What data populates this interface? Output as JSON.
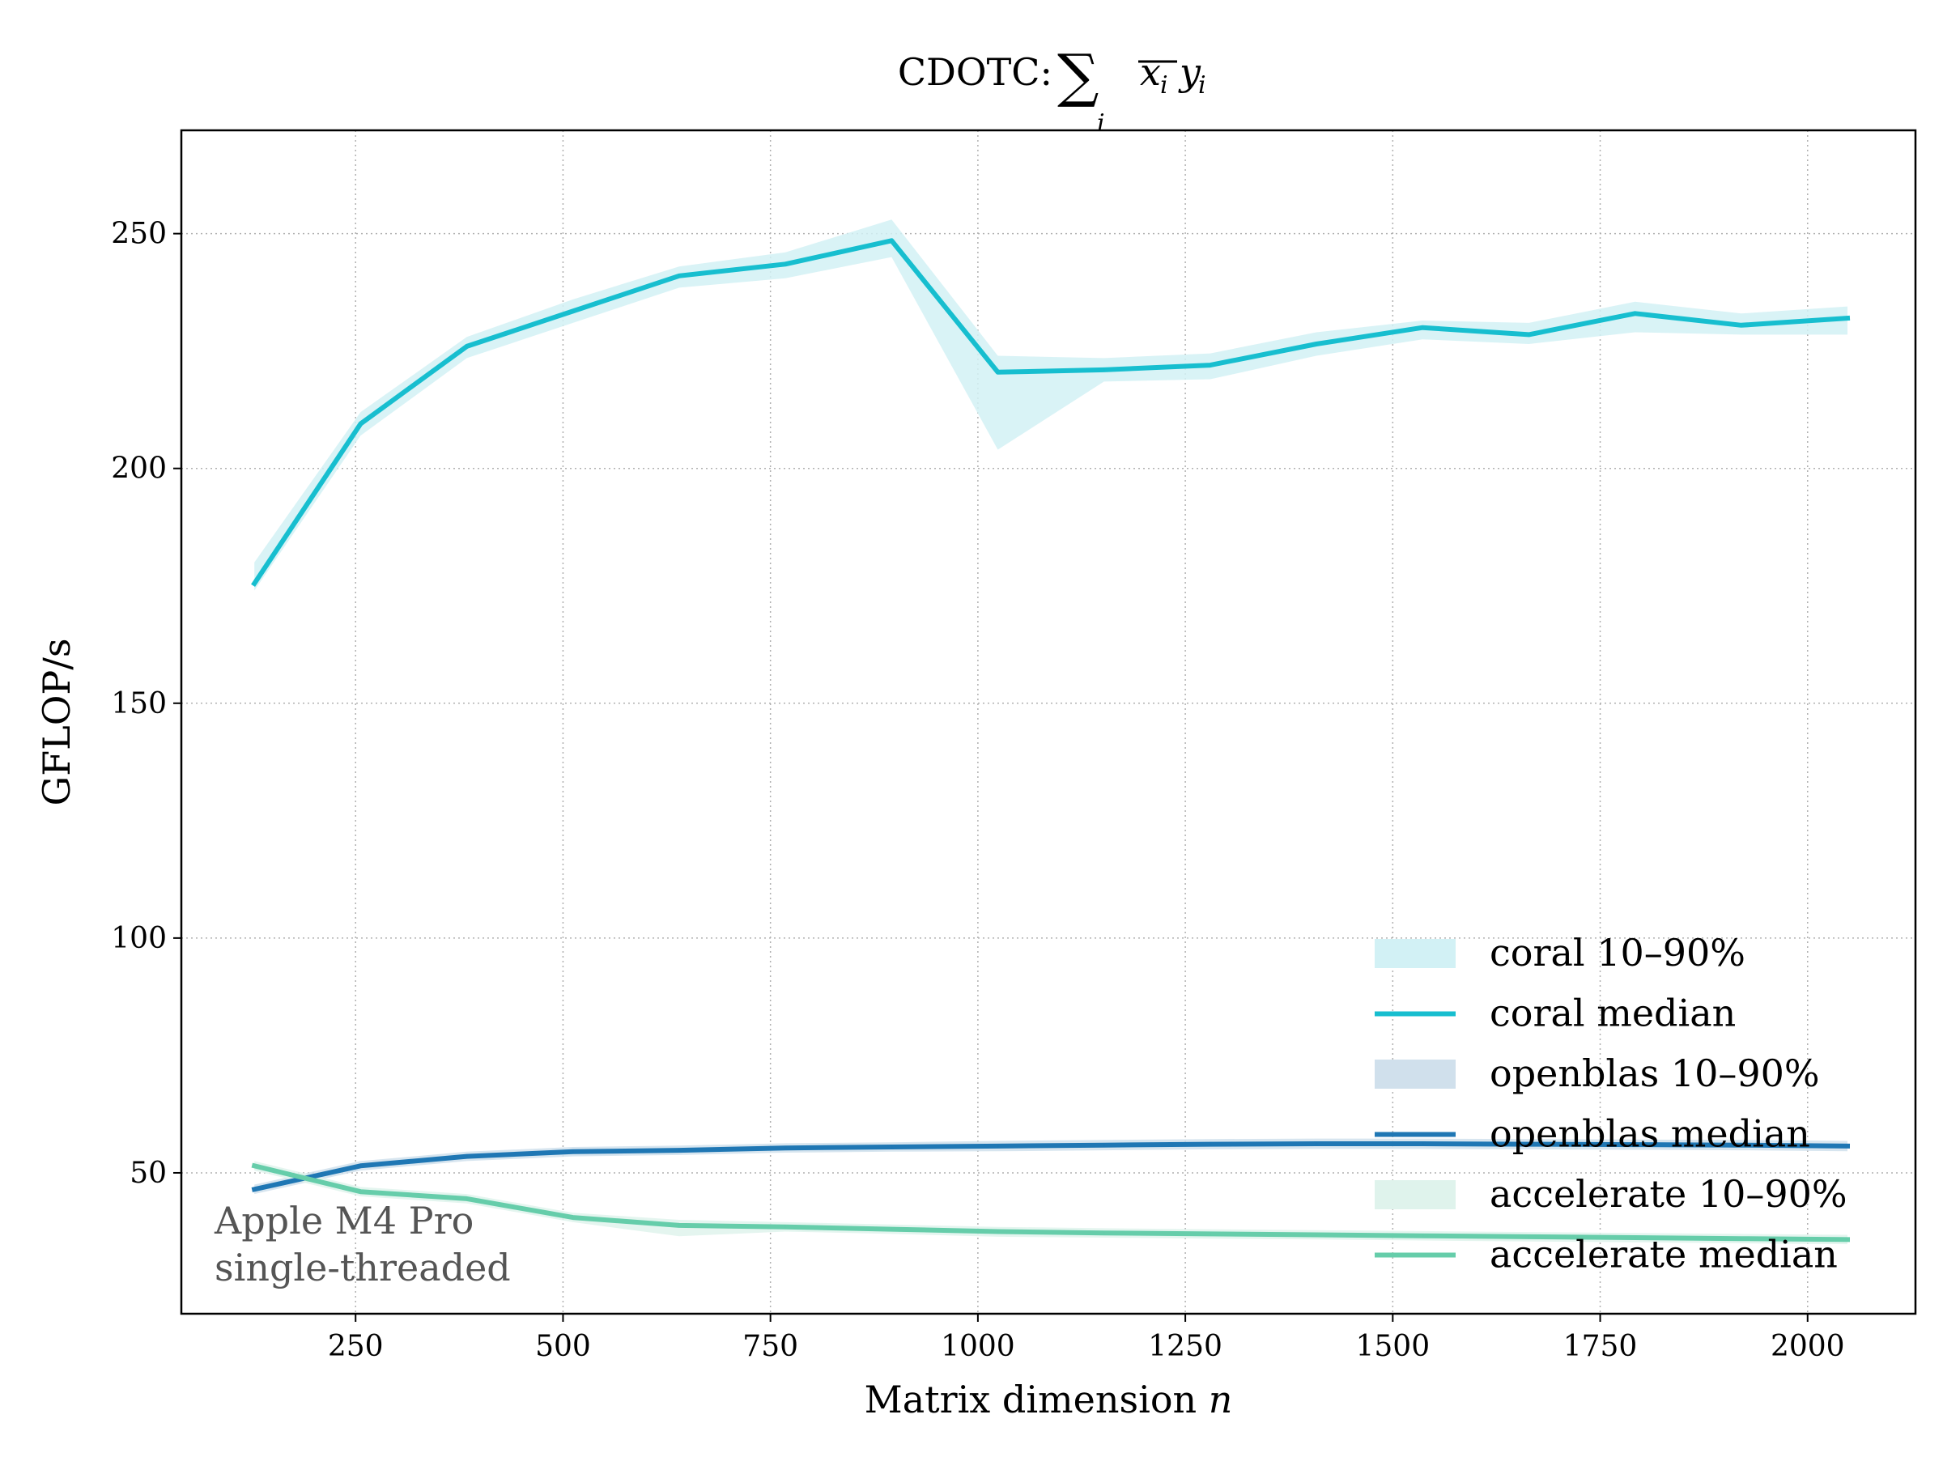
{
  "chart_data": {
    "type": "line",
    "title": "CDOTC: ",
    "title_math": {
      "sum": "∑",
      "sum_index": "i",
      "bar_var": "x",
      "bar_sub": "i",
      "var": "y",
      "var_sub": "i"
    },
    "xlabel": "Matrix dimension ",
    "xlabel_var": "n",
    "ylabel": "GFLOP/s",
    "xlim": [
      40,
      2130
    ],
    "ylim": [
      20,
      272
    ],
    "xticks": [
      250,
      500,
      750,
      1000,
      1250,
      1500,
      1750,
      2000
    ],
    "yticks": [
      50,
      100,
      150,
      200,
      250
    ],
    "grid": true,
    "legend_position": "lower-right",
    "annotation": [
      "Apple M4 Pro",
      "single-threaded"
    ],
    "colors": {
      "coral": "#17becf",
      "coral_band": "#d2f1f5",
      "openblas": "#1f77b4",
      "openblas_band": "#d0e0ec",
      "accelerate": "#66cdaa",
      "accelerate_band": "#dff3ec",
      "annotation": "#555555"
    },
    "x": [
      128,
      256,
      384,
      512,
      640,
      768,
      896,
      1024,
      1152,
      1280,
      1408,
      1536,
      1664,
      1792,
      1920,
      2048
    ],
    "series": [
      {
        "name": "coral median",
        "band_name": "coral 10–90%",
        "key": "coral",
        "median": [
          175.5,
          209.5,
          226,
          233.5,
          241,
          243.5,
          248.5,
          220.5,
          221,
          222,
          226.5,
          230,
          228.5,
          233,
          230.5,
          232
        ],
        "p10": [
          174,
          207,
          223.5,
          231,
          238.5,
          240.5,
          245,
          204,
          218.5,
          219,
          224,
          227.5,
          226.5,
          229,
          228.5,
          228.5
        ],
        "p90": [
          180,
          212,
          228,
          236,
          243,
          246,
          253,
          224,
          223.5,
          224.5,
          229,
          231.5,
          231,
          235.5,
          233,
          234.5
        ]
      },
      {
        "name": "openblas median",
        "band_name": "openblas 10–90%",
        "key": "openblas",
        "median": [
          46.5,
          51.5,
          53.5,
          54.5,
          54.8,
          55.3,
          55.5,
          55.7,
          55.9,
          56.1,
          56.2,
          56.2,
          56.1,
          56,
          55.9,
          55.7
        ],
        "p10": [
          45.5,
          50.5,
          52.5,
          53.5,
          53.8,
          54.3,
          54.5,
          54.6,
          54.8,
          55,
          55.1,
          55.1,
          55,
          54.9,
          54.8,
          54.6
        ],
        "p90": [
          47.5,
          52.5,
          54.5,
          55.5,
          55.8,
          56.3,
          56.5,
          56.8,
          57,
          57.2,
          57.3,
          57.3,
          57.2,
          57.1,
          57,
          56.8
        ]
      },
      {
        "name": "accelerate median",
        "band_name": "accelerate 10–90%",
        "key": "accelerate",
        "median": [
          51.5,
          46,
          44.5,
          40.5,
          38.8,
          38.5,
          38,
          37.5,
          37.2,
          37,
          36.8,
          36.6,
          36.4,
          36.2,
          36,
          35.8
        ],
        "p10": [
          50.5,
          45,
          43.5,
          39.5,
          36.5,
          37.5,
          37,
          36.4,
          36.2,
          36,
          35.8,
          35.6,
          35.4,
          35.2,
          35,
          34.8
        ],
        "p90": [
          52.5,
          47,
          45.5,
          41.5,
          40,
          39.5,
          39,
          38.5,
          38.2,
          38,
          37.8,
          37.6,
          37.4,
          37.2,
          37,
          36.8
        ]
      }
    ]
  }
}
